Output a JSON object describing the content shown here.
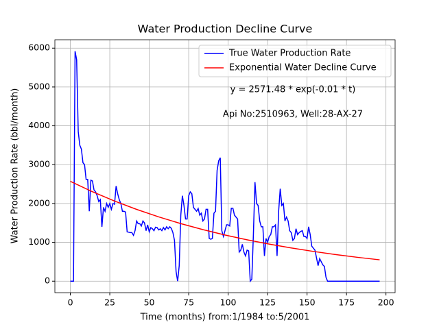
{
  "chart_data": {
    "type": "line",
    "title": "Water Production Decline Curve",
    "xlabel": "Time (months) from:1/1984 to:5/2001",
    "ylabel": "Water Production Rate (bbl/month)",
    "annotations": [
      "y = 2571.48 * exp(-0.01 * t)",
      "Api No:2510963, Well:28-AX-27"
    ],
    "xlim": [
      -9.8,
      205.8
    ],
    "ylim": [
      -296,
      6216
    ],
    "xticks": [
      0,
      25,
      50,
      75,
      100,
      125,
      150,
      175,
      200
    ],
    "yticks": [
      0,
      1000,
      2000,
      3000,
      4000,
      5000,
      6000
    ],
    "grid": true,
    "legend": "upper right",
    "series": [
      {
        "name": "True Water Production Rate",
        "color": "#0000ff",
        "x": [
          0,
          1,
          2,
          3,
          4,
          5,
          6,
          7,
          8,
          9,
          10,
          11,
          12,
          13,
          14,
          15,
          16,
          17,
          18,
          19,
          20,
          21,
          22,
          23,
          24,
          25,
          26,
          27,
          28,
          29,
          30,
          31,
          32,
          33,
          34,
          35,
          36,
          37,
          38,
          39,
          40,
          41,
          42,
          43,
          44,
          45,
          46,
          47,
          48,
          49,
          50,
          51,
          52,
          53,
          54,
          55,
          56,
          57,
          58,
          59,
          60,
          61,
          62,
          63,
          64,
          65,
          66,
          67,
          68,
          69,
          70,
          71,
          72,
          73,
          74,
          75,
          76,
          77,
          78,
          79,
          80,
          81,
          82,
          83,
          84,
          85,
          86,
          87,
          88,
          89,
          90,
          91,
          92,
          93,
          94,
          95,
          96,
          97,
          98,
          99,
          100,
          101,
          102,
          103,
          104,
          105,
          106,
          107,
          108,
          109,
          110,
          111,
          112,
          113,
          114,
          115,
          116,
          117,
          118,
          119,
          120,
          121,
          122,
          123,
          124,
          125,
          126,
          127,
          128,
          129,
          130,
          131,
          132,
          133,
          134,
          135,
          136,
          137,
          138,
          139,
          140,
          141,
          142,
          143,
          144,
          145,
          146,
          147,
          148,
          149,
          150,
          151,
          152,
          153,
          154,
          155,
          156,
          157,
          158,
          159,
          160,
          161,
          162,
          163,
          164,
          165,
          166,
          167,
          168,
          169,
          170,
          171,
          172,
          173,
          174,
          175,
          176,
          177,
          178,
          179,
          180,
          181,
          182,
          183,
          184,
          185,
          186,
          187,
          188,
          189,
          190,
          191,
          192,
          193,
          194,
          195,
          196
        ],
        "values": [
          0,
          0,
          0,
          5920,
          5700,
          3850,
          3500,
          3400,
          3050,
          3000,
          2620,
          2620,
          1800,
          2600,
          2580,
          2350,
          2300,
          2200,
          2050,
          2100,
          1400,
          1900,
          1800,
          2000,
          1900,
          2000,
          1850,
          2000,
          1980,
          2450,
          2250,
          2100,
          2000,
          1800,
          1800,
          1780,
          1270,
          1260,
          1250,
          1250,
          1180,
          1300,
          1550,
          1480,
          1480,
          1420,
          1550,
          1500,
          1300,
          1450,
          1270,
          1380,
          1350,
          1300,
          1390,
          1380,
          1320,
          1350,
          1300,
          1380,
          1320,
          1400,
          1350,
          1400,
          1360,
          1250,
          1050,
          250,
          0,
          400,
          1700,
          2200,
          1950,
          1600,
          1600,
          2200,
          2300,
          2250,
          1900,
          1850,
          1800,
          1870,
          1700,
          1750,
          1550,
          1600,
          1850,
          1850,
          1100,
          1080,
          1100,
          1750,
          1800,
          2850,
          3100,
          3180,
          1300,
          1150,
          1300,
          1450,
          1450,
          1420,
          1880,
          1880,
          1700,
          1650,
          1600,
          750,
          800,
          950,
          750,
          650,
          800,
          780,
          0,
          50,
          1200,
          2550,
          2000,
          1950,
          1550,
          1400,
          1400,
          650,
          1100,
          1000,
          1150,
          1200,
          1400,
          1400,
          1450,
          650,
          1800,
          2380,
          1950,
          2000,
          1550,
          1650,
          1550,
          1300,
          1250,
          1050,
          1100,
          1350,
          1200,
          1250,
          1280,
          1300,
          1150,
          1150,
          1100,
          1400,
          1200,
          900,
          850,
          800,
          600,
          400,
          580,
          500,
          420,
          380,
          100,
          0,
          0,
          0,
          0,
          0,
          0,
          0,
          0,
          0,
          0,
          0,
          0,
          0,
          0,
          0,
          0,
          0,
          0,
          0,
          0,
          0,
          0,
          0,
          0,
          0,
          0,
          0,
          0,
          0,
          0,
          0,
          0,
          0,
          0
        ]
      },
      {
        "name": "Exponential Water Decline Curve",
        "color": "#ff0000",
        "x": [
          0,
          14,
          28,
          42,
          56,
          70,
          84,
          98,
          112,
          126,
          140,
          154,
          168,
          182,
          196
        ],
        "values": [
          2571,
          2303,
          2063,
          1848,
          1655,
          1482,
          1328,
          1189,
          1065,
          954,
          855,
          766,
          686,
          614,
          550
        ]
      }
    ]
  }
}
